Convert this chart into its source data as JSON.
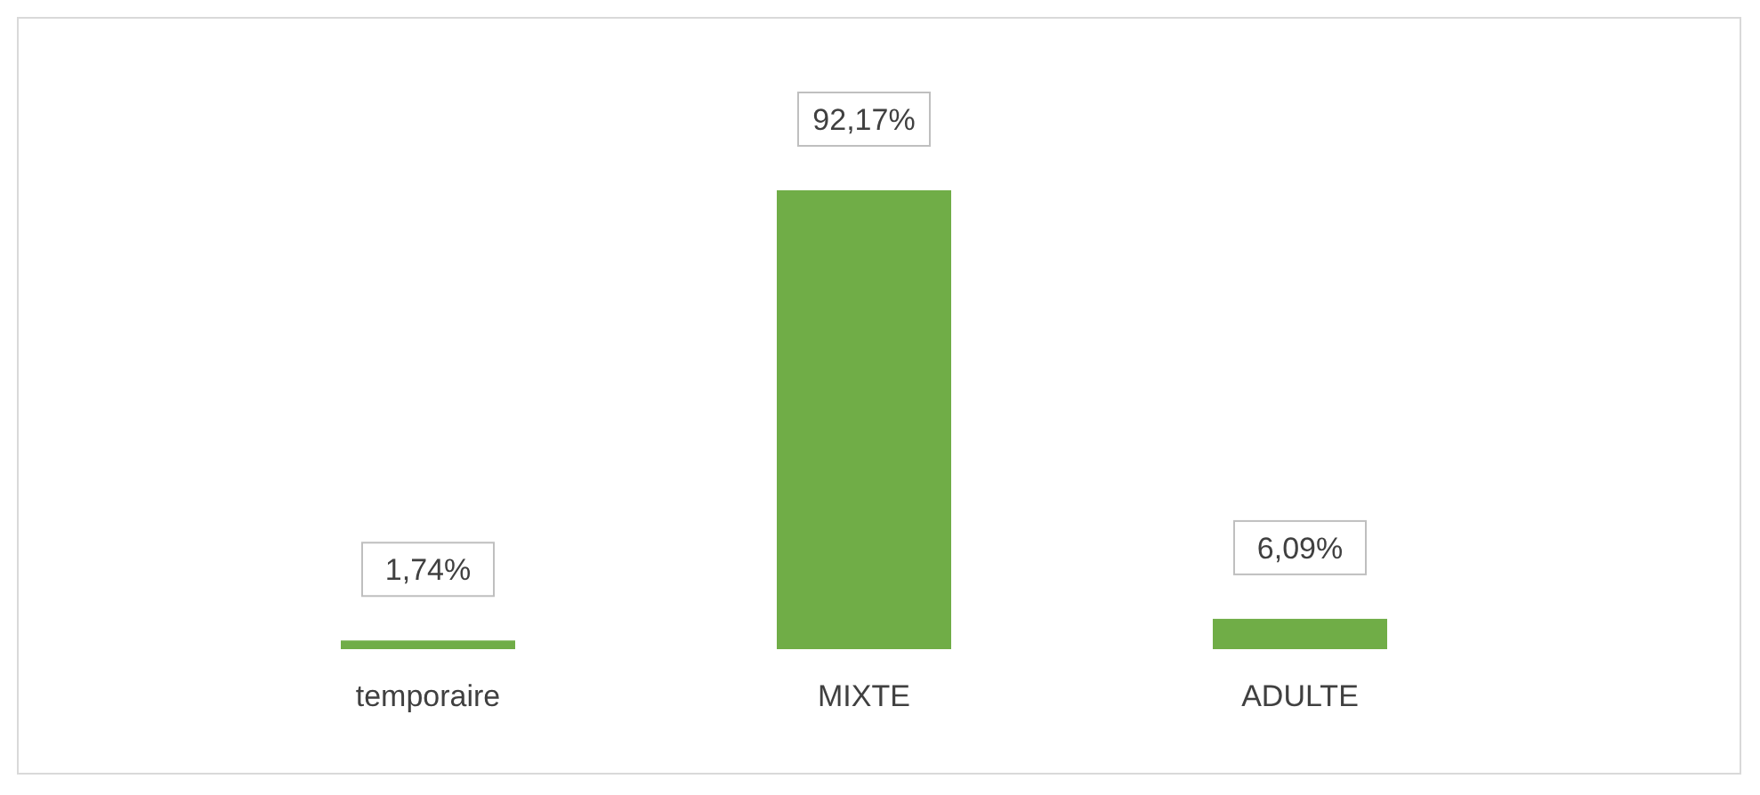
{
  "chart_data": {
    "type": "bar",
    "categories": [
      "temporaire",
      "MIXTE",
      "ADULTE"
    ],
    "values": [
      1.74,
      92.17,
      6.09
    ],
    "value_labels": [
      "1,74%",
      "92,17%",
      "6,09%"
    ],
    "color": "#70ad47"
  }
}
